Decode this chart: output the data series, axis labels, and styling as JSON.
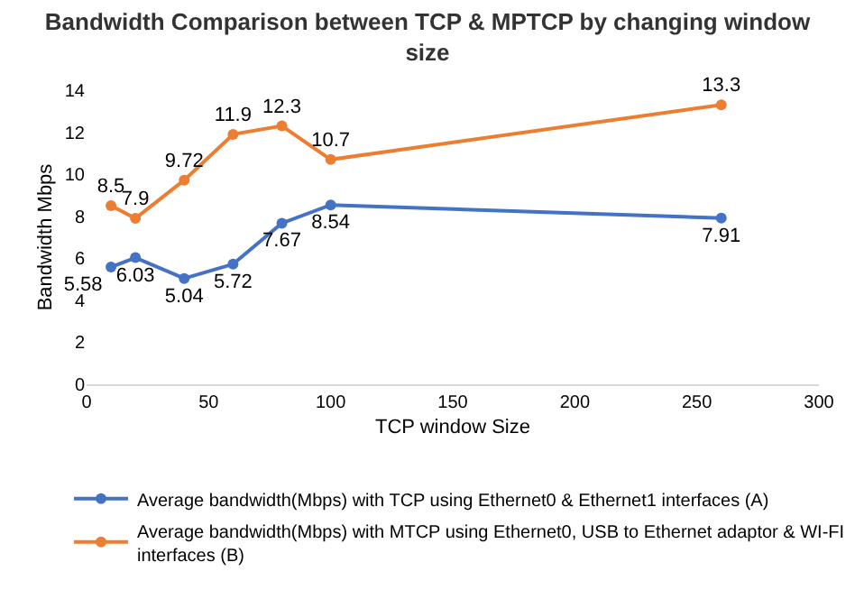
{
  "chart_data": {
    "type": "line",
    "title": "Bandwidth Comparison between TCP & MPTCP by changing window size",
    "xlabel": "TCP window Size",
    "ylabel": "Bandwidth Mbps",
    "x": [
      10,
      20,
      40,
      60,
      80,
      100,
      260
    ],
    "series": [
      {
        "name": "Average bandwidth(Mbps) with TCP using Ethernet0 & Ethernet1 interfaces (A)",
        "color": "#4472c4",
        "values": [
          5.58,
          6.03,
          5.04,
          5.72,
          7.67,
          8.54,
          7.91
        ]
      },
      {
        "name": "Average bandwidth(Mbps) with MTCP using Ethernet0, USB to Ethernet adaptor & WI-FI interfaces (B)",
        "color": "#ed7d31",
        "values": [
          8.5,
          7.9,
          9.72,
          11.9,
          12.3,
          10.7,
          13.3
        ]
      }
    ],
    "xlim": [
      0,
      300
    ],
    "xticks": [
      0,
      50,
      100,
      150,
      200,
      250,
      300
    ],
    "ylim": [
      0,
      14
    ],
    "yticks": [
      0,
      2,
      4,
      6,
      8,
      10,
      12,
      14
    ],
    "data_labels": true,
    "grid": false,
    "legend": "bottom",
    "marker": "circle",
    "line_style": "solid"
  }
}
